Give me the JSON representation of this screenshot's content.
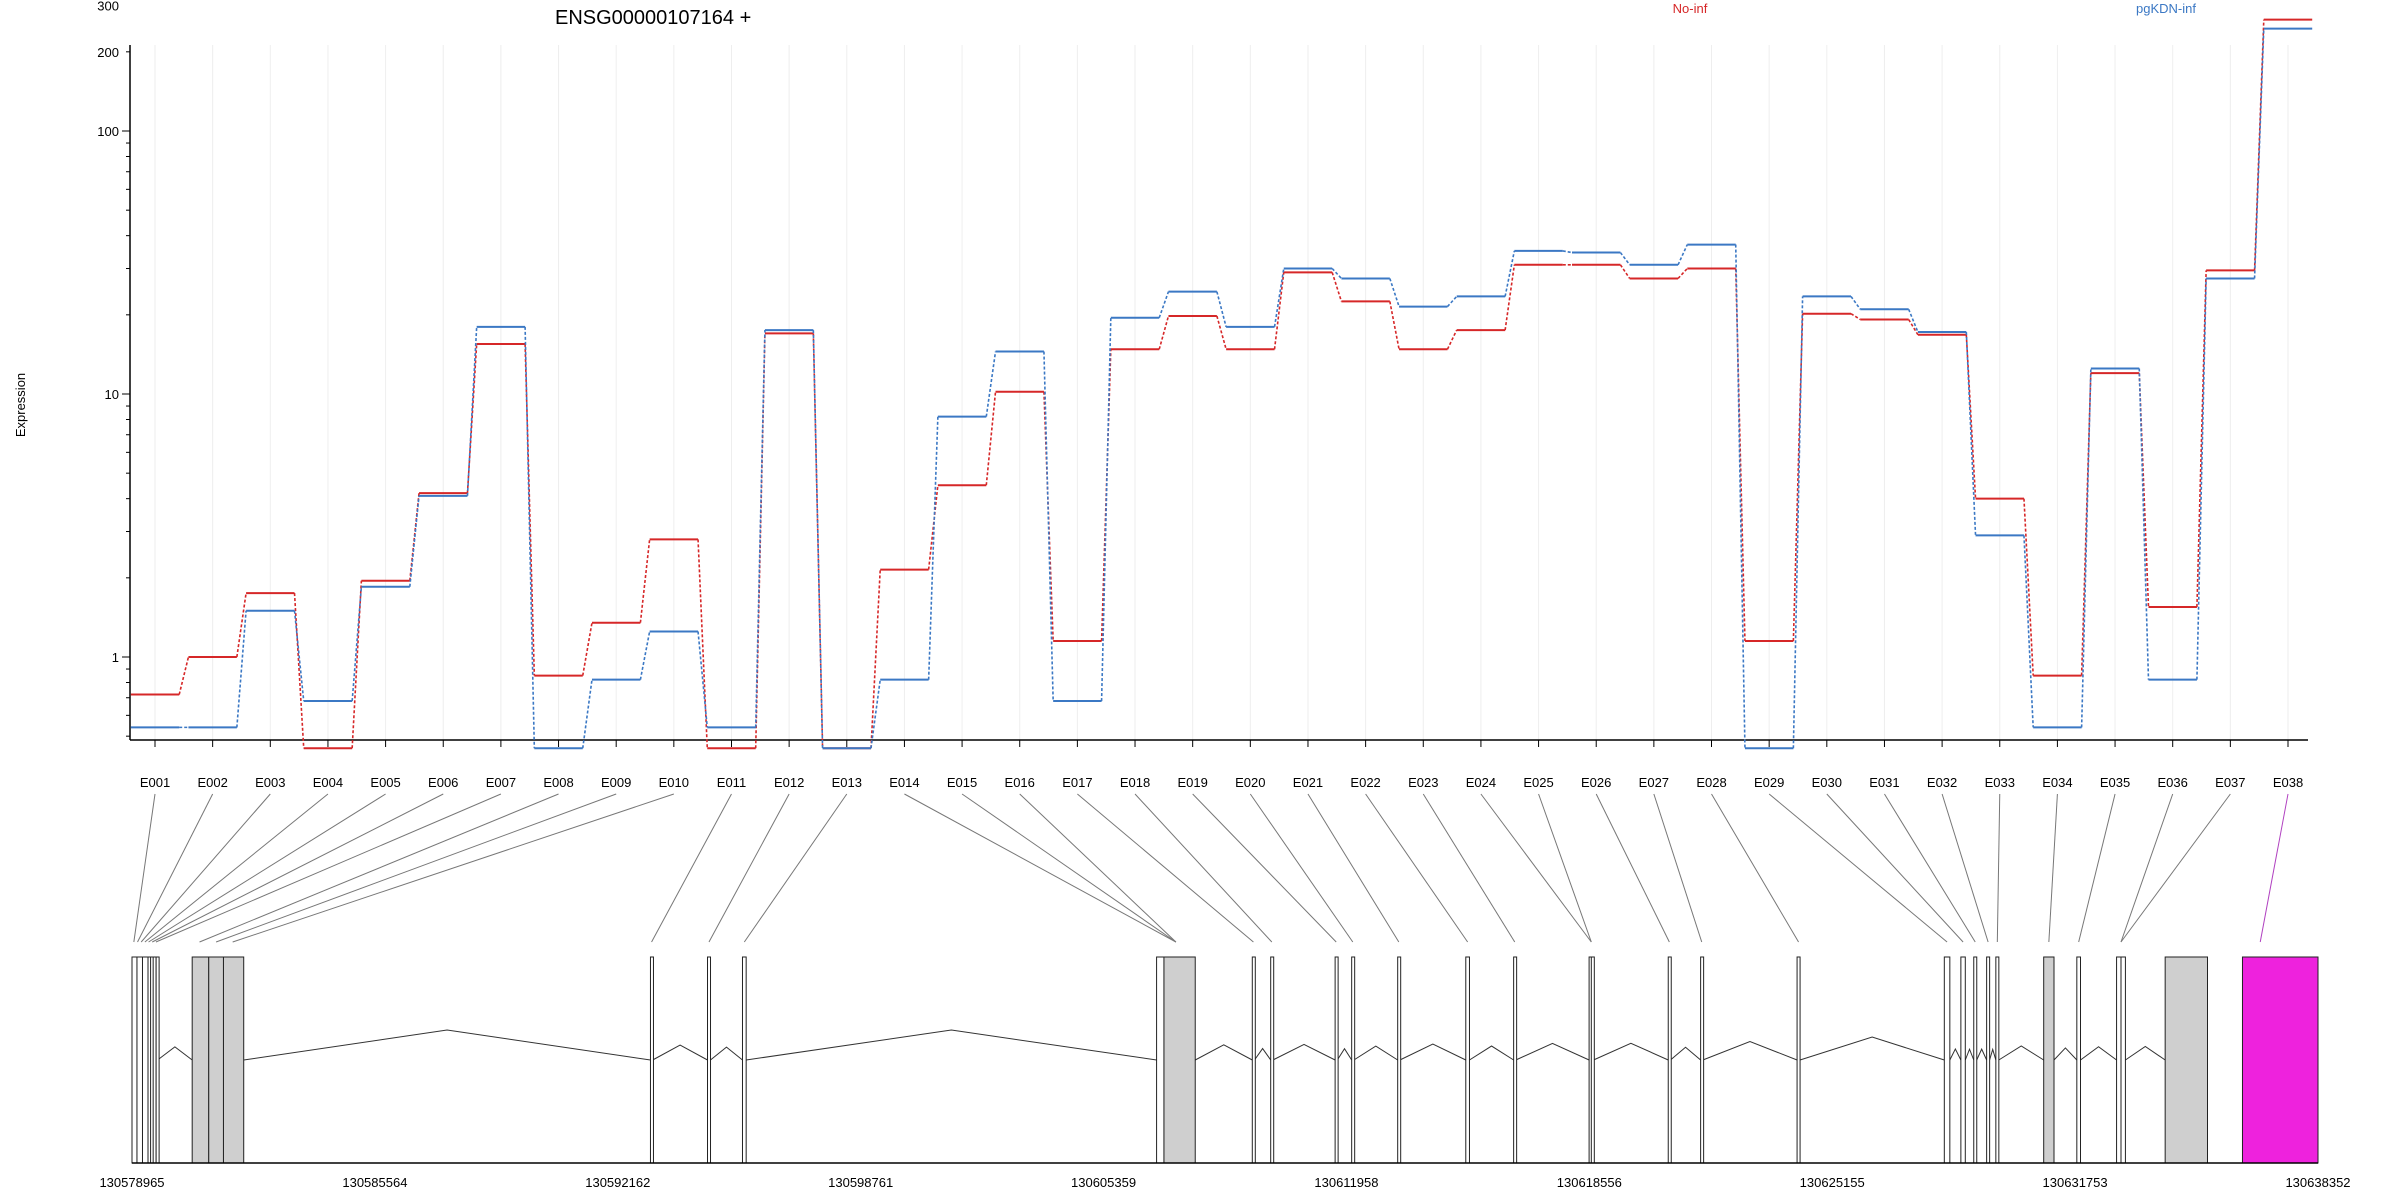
{
  "chart_data": {
    "type": "line",
    "title": "ENSG00000107164 +",
    "ylabel": "Expression",
    "xlabel": "",
    "y_scale": "log",
    "y_ticks": [
      1,
      10,
      100,
      200,
      300
    ],
    "ylim": [
      0.5,
      400
    ],
    "grid": "vertical",
    "legend_placement": "top",
    "categories": [
      "E001",
      "E002",
      "E003",
      "E004",
      "E005",
      "E006",
      "E007",
      "E008",
      "E009",
      "E010",
      "E011",
      "E012",
      "E013",
      "E014",
      "E015",
      "E016",
      "E017",
      "E018",
      "E019",
      "E020",
      "E021",
      "E022",
      "E023",
      "E024",
      "E025",
      "E026",
      "E027",
      "E028",
      "E029",
      "E030",
      "E031",
      "E032",
      "E033",
      "E034",
      "E035",
      "E036",
      "E037",
      "E038"
    ],
    "series": [
      {
        "name": "No-inf",
        "color": "#d62728",
        "values": [
          0.72,
          1.0,
          1.75,
          0.45,
          1.95,
          4.2,
          15.5,
          0.85,
          1.35,
          2.8,
          0.45,
          17.0,
          0.45,
          2.15,
          4.5,
          10.2,
          1.15,
          14.8,
          19.8,
          14.8,
          29.0,
          22.5,
          14.8,
          17.5,
          31.0,
          31.0,
          27.5,
          30.0,
          1.15,
          20.2,
          19.2,
          16.8,
          4.0,
          0.85,
          12.0,
          1.55,
          29.5,
          265.0
        ]
      },
      {
        "name": "pgKDN-inf",
        "color": "#3b78c4",
        "values": [
          0.54,
          0.54,
          1.5,
          0.68,
          1.85,
          4.1,
          18.0,
          0.45,
          0.82,
          1.25,
          0.54,
          17.5,
          0.45,
          0.82,
          8.2,
          14.5,
          0.68,
          19.5,
          24.5,
          18.0,
          30.0,
          27.5,
          21.5,
          23.5,
          35.0,
          34.5,
          31.0,
          37.0,
          0.45,
          23.5,
          21.0,
          17.2,
          2.9,
          0.54,
          12.5,
          0.82,
          27.5,
          245.0
        ]
      }
    ],
    "gene_model": {
      "coordinate_ticks": [
        "130578965",
        "130585564",
        "130592162",
        "130598761",
        "130605359",
        "130611958",
        "130618556",
        "130625155",
        "130631753",
        "130638352"
      ],
      "coord_range": [
        130578965,
        130638352
      ],
      "exon_segments": [
        [
          130578965,
          130579100,
          0
        ],
        [
          130579100,
          130579250,
          0
        ],
        [
          130579250,
          130579400,
          0
        ],
        [
          130579400,
          130579470,
          0
        ],
        [
          130579470,
          130579540,
          0
        ],
        [
          130579540,
          130579620,
          0
        ],
        [
          130579620,
          130579660,
          0
        ],
        [
          130580600,
          130581050,
          1
        ],
        [
          130581050,
          130581450,
          1
        ],
        [
          130581450,
          130582000,
          1
        ],
        [
          130593050,
          130593110,
          2
        ],
        [
          130594600,
          130594680,
          3
        ],
        [
          130595550,
          130595650,
          4
        ],
        [
          130606800,
          130607000,
          5
        ],
        [
          130607000,
          130607850,
          5
        ],
        [
          130609400,
          130609460,
          6
        ],
        [
          130609900,
          130609960,
          7
        ],
        [
          130611650,
          130611710,
          8
        ],
        [
          130612100,
          130612160,
          9
        ],
        [
          130613350,
          130613410,
          10
        ],
        [
          130615200,
          130615300,
          11
        ],
        [
          130616500,
          130616560,
          12
        ],
        [
          130618550,
          130618610,
          13
        ],
        [
          130618610,
          130618670,
          13
        ],
        [
          130620700,
          130620760,
          14
        ],
        [
          130621580,
          130621640,
          15
        ],
        [
          130624200,
          130624280,
          16
        ],
        [
          130628200,
          130628350,
          17
        ],
        [
          130628650,
          130628770,
          18
        ],
        [
          130629000,
          130629080,
          19
        ],
        [
          130629350,
          130629430,
          20
        ],
        [
          130629600,
          130629680,
          21
        ],
        [
          130630900,
          130631180,
          22
        ],
        [
          130631800,
          130631900,
          23
        ],
        [
          130632880,
          130633000,
          24
        ],
        [
          130633000,
          130633120,
          24
        ],
        [
          130634200,
          130635350,
          25
        ]
      ],
      "highlight_color": "#ee22dd"
    }
  }
}
